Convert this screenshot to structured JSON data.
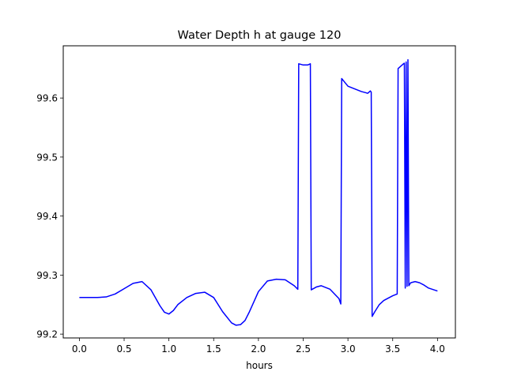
{
  "chart_data": {
    "type": "line",
    "title": "Water Depth h at gauge 120",
    "xlabel": "hours",
    "ylabel": "",
    "xlim": [
      -0.18,
      4.2
    ],
    "ylim": [
      99.1935,
      99.6885
    ],
    "x_ticks": [
      0.0,
      0.5,
      1.0,
      1.5,
      2.0,
      2.5,
      3.0,
      3.5,
      4.0
    ],
    "x_tick_labels": [
      "0.0",
      "0.5",
      "1.0",
      "1.5",
      "2.0",
      "2.5",
      "3.0",
      "3.5",
      "4.0"
    ],
    "y_ticks": [
      99.2,
      99.3,
      99.4,
      99.5,
      99.6
    ],
    "y_tick_labels": [
      "99.2",
      "99.3",
      "99.4",
      "99.5",
      "99.6"
    ],
    "grid": false,
    "legend": "none",
    "series": [
      {
        "color": "#0000ff",
        "x": [
          0.0,
          0.1,
          0.2,
          0.3,
          0.4,
          0.5,
          0.6,
          0.7,
          0.8,
          0.9,
          0.95,
          1.0,
          1.05,
          1.1,
          1.2,
          1.3,
          1.4,
          1.5,
          1.6,
          1.7,
          1.75,
          1.8,
          1.85,
          1.9,
          2.0,
          2.1,
          2.2,
          2.3,
          2.4,
          2.44,
          2.45,
          2.5,
          2.55,
          2.58,
          2.59,
          2.65,
          2.7,
          2.8,
          2.9,
          2.92,
          2.93,
          3.0,
          3.05,
          3.1,
          3.15,
          3.2,
          3.22,
          3.25,
          3.26,
          3.27,
          3.3,
          3.35,
          3.4,
          3.5,
          3.55,
          3.56,
          3.62,
          3.63,
          3.64,
          3.65,
          3.66,
          3.67,
          3.68,
          3.7,
          3.75,
          3.8,
          3.85,
          3.9,
          4.0
        ],
        "y": [
          99.262,
          99.262,
          99.262,
          99.263,
          99.268,
          99.277,
          99.286,
          99.289,
          99.275,
          99.248,
          99.237,
          99.234,
          99.24,
          99.25,
          99.262,
          99.269,
          99.271,
          99.262,
          99.238,
          99.219,
          99.215,
          99.216,
          99.223,
          99.238,
          99.272,
          99.29,
          99.293,
          99.292,
          99.282,
          99.276,
          99.658,
          99.656,
          99.656,
          99.658,
          99.275,
          99.28,
          99.282,
          99.276,
          99.26,
          99.251,
          99.633,
          99.62,
          99.617,
          99.614,
          99.611,
          99.609,
          99.608,
          99.612,
          99.61,
          99.23,
          99.238,
          99.25,
          99.257,
          99.265,
          99.268,
          99.65,
          99.658,
          99.659,
          99.278,
          99.661,
          99.281,
          99.665,
          99.282,
          99.287,
          99.289,
          99.287,
          99.283,
          99.278,
          99.273
        ]
      }
    ]
  }
}
